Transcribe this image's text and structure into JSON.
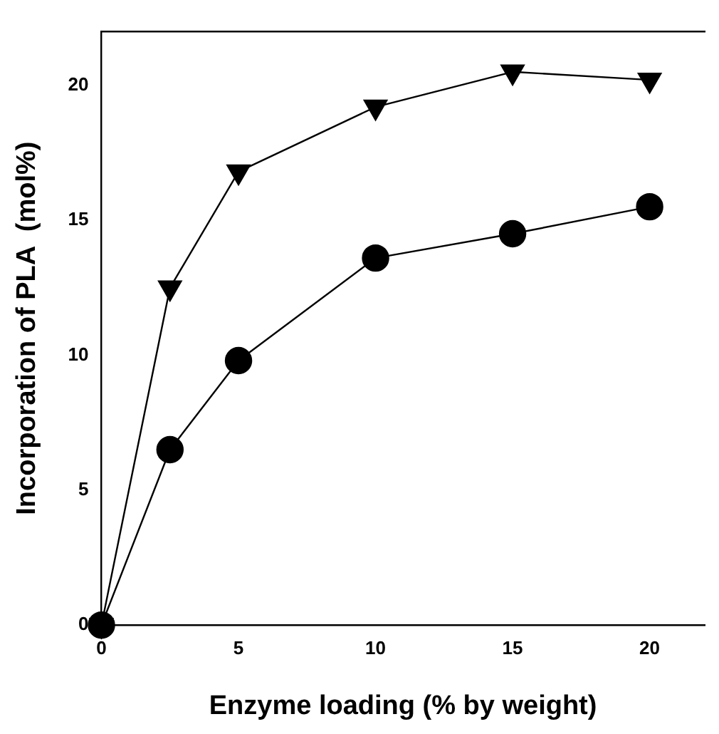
{
  "chart_data": {
    "type": "line",
    "xlabel": "Enzyme loading (% by weight)",
    "ylabel": "Incorporation of PLA  (mol%)",
    "x": [
      0,
      2.5,
      5,
      10,
      15,
      20
    ],
    "series": [
      {
        "color": "#000000",
        "marker": "circle",
        "values": [
          0,
          6.5,
          9.8,
          13.6,
          14.5,
          15.5
        ]
      },
      {
        "color": "#000000",
        "marker": "triangle",
        "values": [
          0,
          12.5,
          16.8,
          19.2,
          20.5,
          20.2
        ]
      }
    ],
    "xlim": [
      0,
      22
    ],
    "xticks": [
      0,
      5,
      10,
      15,
      20
    ],
    "ylim": [
      0,
      22
    ],
    "yticks": [
      0,
      5,
      10,
      15,
      20
    ],
    "grid": false,
    "legend": false
  }
}
